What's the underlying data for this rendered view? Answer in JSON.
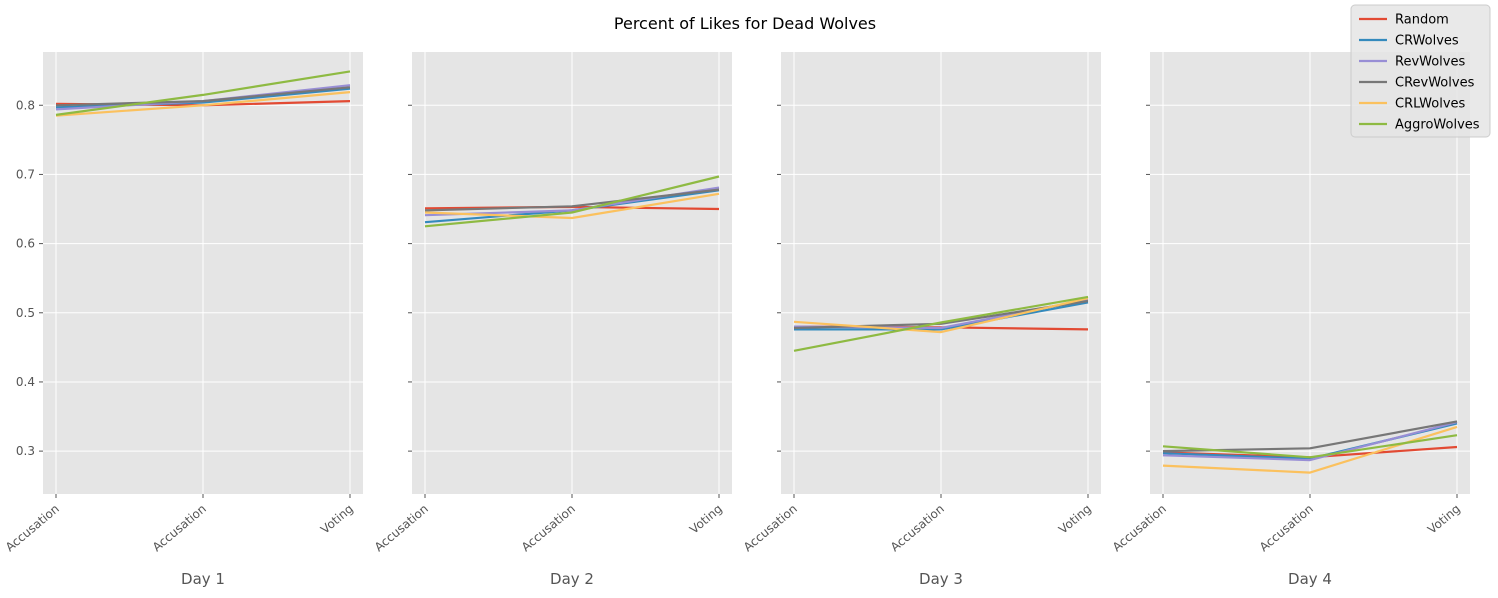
{
  "chart_data": {
    "type": "line",
    "title": "Percent of Likes for Dead Wolves",
    "categories": [
      "Accusation",
      "Accusation",
      "Voting"
    ],
    "ylim": [
      0.238,
      0.877
    ],
    "yticks": [
      "0.3",
      "0.4",
      "0.5",
      "0.6",
      "0.7",
      "0.8"
    ],
    "grid": true,
    "shared_y": true,
    "legend_placement": "top-right",
    "series_colors": {
      "Random": "#e24a33",
      "CRWolves": "#348abd",
      "RevWolves": "#988ed5",
      "CRevWolves": "#777777",
      "CRLWolves": "#fbc15e",
      "AggroWolves": "#8eba42"
    },
    "panels": [
      {
        "xlabel": "Day 1",
        "series": [
          {
            "name": "Random",
            "values": [
              0.802,
              0.8,
              0.806
            ]
          },
          {
            "name": "CRWolves",
            "values": [
              0.797,
              0.804,
              0.824
            ]
          },
          {
            "name": "RevWolves",
            "values": [
              0.794,
              0.806,
              0.829
            ]
          },
          {
            "name": "CRevWolves",
            "values": [
              0.8,
              0.806,
              0.826
            ]
          },
          {
            "name": "CRLWolves",
            "values": [
              0.785,
              0.8,
              0.819
            ]
          },
          {
            "name": "AggroWolves",
            "values": [
              0.786,
              0.815,
              0.849
            ]
          }
        ]
      },
      {
        "xlabel": "Day 2",
        "series": [
          {
            "name": "Random",
            "values": [
              0.651,
              0.653,
              0.65
            ]
          },
          {
            "name": "CRWolves",
            "values": [
              0.631,
              0.648,
              0.677
            ]
          },
          {
            "name": "RevWolves",
            "values": [
              0.641,
              0.648,
              0.681
            ]
          },
          {
            "name": "CRevWolves",
            "values": [
              0.648,
              0.654,
              0.678
            ]
          },
          {
            "name": "CRLWolves",
            "values": [
              0.645,
              0.637,
              0.672
            ]
          },
          {
            "name": "AggroWolves",
            "values": [
              0.625,
              0.645,
              0.697
            ]
          }
        ]
      },
      {
        "xlabel": "Day 3",
        "series": [
          {
            "name": "Random",
            "values": [
              0.48,
              0.479,
              0.476
            ]
          },
          {
            "name": "CRWolves",
            "values": [
              0.476,
              0.476,
              0.515
            ]
          },
          {
            "name": "RevWolves",
            "values": [
              0.48,
              0.478,
              0.519
            ]
          },
          {
            "name": "CRevWolves",
            "values": [
              0.478,
              0.484,
              0.517
            ]
          },
          {
            "name": "CRLWolves",
            "values": [
              0.487,
              0.472,
              0.521
            ]
          },
          {
            "name": "AggroWolves",
            "values": [
              0.445,
              0.486,
              0.523
            ]
          }
        ]
      },
      {
        "xlabel": "Day 4",
        "series": [
          {
            "name": "Random",
            "values": [
              0.298,
              0.291,
              0.306
            ]
          },
          {
            "name": "CRWolves",
            "values": [
              0.297,
              0.289,
              0.34
            ]
          },
          {
            "name": "RevWolves",
            "values": [
              0.294,
              0.287,
              0.342
            ]
          },
          {
            "name": "CRevWolves",
            "values": [
              0.3,
              0.304,
              0.343
            ]
          },
          {
            "name": "CRLWolves",
            "values": [
              0.279,
              0.269,
              0.335
            ]
          },
          {
            "name": "AggroWolves",
            "values": [
              0.307,
              0.291,
              0.323
            ]
          }
        ]
      }
    ]
  }
}
